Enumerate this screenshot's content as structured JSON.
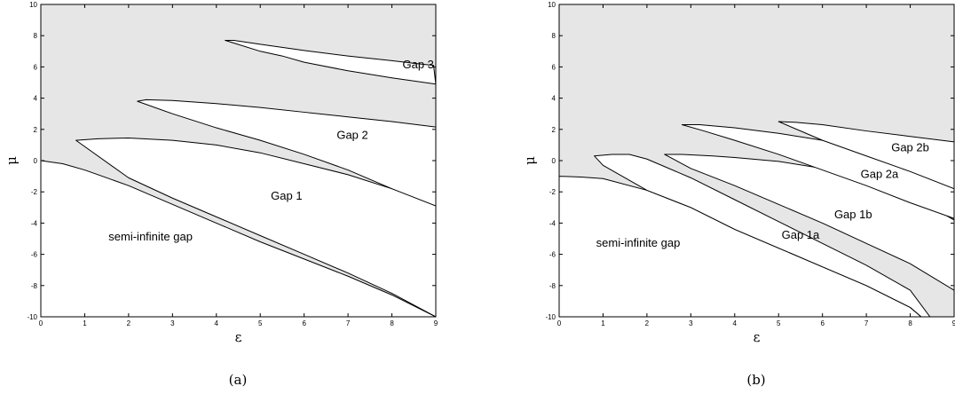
{
  "chart_data": [
    {
      "type": "area",
      "xlabel": "ε",
      "ylabel": "μ",
      "caption": "(a)",
      "xlim": [
        0,
        9
      ],
      "ylim": [
        -10,
        10
      ],
      "x_ticks": [
        0,
        1,
        2,
        3,
        4,
        5,
        6,
        7,
        8,
        9
      ],
      "y_ticks": [
        -10,
        -8,
        -6,
        -4,
        -2,
        0,
        2,
        4,
        6,
        8,
        10
      ],
      "fill_color": "#e6e6e6",
      "line_color": "#000000",
      "gaps": [
        {
          "name": "semi-infinite gap",
          "label_at": [
            2.5,
            -5.1
          ],
          "points": [
            [
              0,
              -10
            ],
            [
              0,
              0
            ],
            [
              0.5,
              -0.2
            ],
            [
              1,
              -0.6
            ],
            [
              2,
              -1.6
            ],
            [
              3,
              -2.8
            ],
            [
              4,
              -4.0
            ],
            [
              5,
              -5.2
            ],
            [
              6,
              -6.3
            ],
            [
              7,
              -7.4
            ],
            [
              8,
              -8.6
            ],
            [
              9,
              -10
            ]
          ]
        },
        {
          "name": "Gap 1",
          "label_at": [
            5.6,
            -2.5
          ],
          "points": [
            [
              0.8,
              1.3
            ],
            [
              1.3,
              1.4
            ],
            [
              2,
              1.45
            ],
            [
              3,
              1.3
            ],
            [
              4,
              1.0
            ],
            [
              5,
              0.5
            ],
            [
              6,
              -0.2
            ],
            [
              7,
              -0.9
            ],
            [
              8,
              -1.8
            ],
            [
              9,
              -2.8
            ],
            [
              9,
              -10
            ],
            [
              8,
              -8.5
            ],
            [
              7,
              -7.2
            ],
            [
              6,
              -6.0
            ],
            [
              5,
              -4.8
            ],
            [
              4,
              -3.6
            ],
            [
              3,
              -2.4
            ],
            [
              2,
              -1.1
            ],
            [
              0.8,
              1.3
            ]
          ]
        },
        {
          "name": "Gap 2",
          "label_at": [
            7.1,
            1.4
          ],
          "points": [
            [
              2.2,
              3.8
            ],
            [
              2.4,
              3.9
            ],
            [
              3,
              3.85
            ],
            [
              4,
              3.65
            ],
            [
              5,
              3.4
            ],
            [
              6,
              3.1
            ],
            [
              7,
              2.8
            ],
            [
              8,
              2.5
            ],
            [
              9,
              2.15
            ],
            [
              9,
              -2.9
            ],
            [
              8,
              -1.8
            ],
            [
              7,
              -0.6
            ],
            [
              6,
              0.4
            ],
            [
              5,
              1.3
            ],
            [
              4,
              2.1
            ],
            [
              3,
              3.0
            ],
            [
              2.2,
              3.8
            ]
          ]
        },
        {
          "name": "Gap 3",
          "label_at": [
            8.6,
            5.9
          ],
          "points": [
            [
              4.2,
              7.7
            ],
            [
              4.4,
              7.7
            ],
            [
              5,
              7.45
            ],
            [
              6,
              7.05
            ],
            [
              7,
              6.7
            ],
            [
              8,
              6.4
            ],
            [
              8.6,
              6.2
            ],
            [
              8.95,
              6.1
            ],
            [
              9,
              4.9
            ],
            [
              8,
              5.3
            ],
            [
              7,
              5.75
            ],
            [
              6,
              6.3
            ],
            [
              5.5,
              6.7
            ],
            [
              5,
              7.0
            ],
            [
              4.2,
              7.7
            ]
          ]
        }
      ]
    },
    {
      "type": "area",
      "xlabel": "ε",
      "ylabel": "μ",
      "caption": "(b)",
      "xlim": [
        0,
        9
      ],
      "ylim": [
        -10,
        10
      ],
      "x_ticks": [
        0,
        1,
        2,
        3,
        4,
        5,
        6,
        7,
        8,
        9
      ],
      "y_ticks": [
        -10,
        -8,
        -6,
        -4,
        -2,
        0,
        2,
        4,
        6,
        8,
        10
      ],
      "fill_color": "#e6e6e6",
      "line_color": "#000000",
      "gaps": [
        {
          "name": "semi-infinite gap",
          "label_at": [
            1.8,
            -5.5
          ],
          "points": [
            [
              0,
              -10
            ],
            [
              0,
              -1.0
            ],
            [
              0.5,
              -1.05
            ],
            [
              1,
              -1.15
            ],
            [
              2,
              -1.9
            ],
            [
              3,
              -3.0
            ],
            [
              4,
              -4.4
            ],
            [
              5,
              -5.6
            ],
            [
              6,
              -6.8
            ],
            [
              7,
              -8.0
            ],
            [
              8,
              -9.4
            ],
            [
              8.25,
              -10
            ]
          ]
        },
        {
          "name": "Gap 1a",
          "label_at": [
            5.5,
            -5.0
          ],
          "points": [
            [
              0.8,
              0.3
            ],
            [
              1.2,
              0.4
            ],
            [
              1.6,
              0.4
            ],
            [
              2,
              0.1
            ],
            [
              3,
              -1.1
            ],
            [
              4,
              -2.5
            ],
            [
              5,
              -3.9
            ],
            [
              6,
              -5.3
            ],
            [
              7,
              -6.7
            ],
            [
              8,
              -8.3
            ],
            [
              8.45,
              -10
            ],
            [
              8.25,
              -10
            ],
            [
              8,
              -9.4
            ],
            [
              7,
              -8.0
            ],
            [
              6,
              -6.8
            ],
            [
              5,
              -5.6
            ],
            [
              4,
              -4.4
            ],
            [
              3,
              -3.0
            ],
            [
              2,
              -1.9
            ],
            [
              1,
              -0.3
            ],
            [
              0.8,
              0.3
            ]
          ]
        },
        {
          "name": "Gap 1b",
          "label_at": [
            6.7,
            -3.7
          ],
          "points": [
            [
              2.4,
              0.4
            ],
            [
              2.8,
              0.4
            ],
            [
              3.5,
              0.3
            ],
            [
              4,
              0.2
            ],
            [
              5,
              -0.05
            ],
            [
              6,
              -0.5
            ],
            [
              7,
              -1.2
            ],
            [
              8,
              -2.2
            ],
            [
              9,
              -3.8
            ],
            [
              9,
              -8.3
            ],
            [
              8,
              -6.6
            ],
            [
              7,
              -5.3
            ],
            [
              6,
              -4.0
            ],
            [
              5,
              -2.8
            ],
            [
              4,
              -1.6
            ],
            [
              3,
              -0.5
            ],
            [
              2.4,
              0.4
            ]
          ]
        },
        {
          "name": "Gap 2a",
          "label_at": [
            7.3,
            -1.1
          ],
          "points": [
            [
              2.8,
              2.3
            ],
            [
              3.2,
              2.3
            ],
            [
              4,
              2.1
            ],
            [
              5,
              1.75
            ],
            [
              6,
              1.3
            ],
            [
              7,
              0.75
            ],
            [
              8,
              0.1
            ],
            [
              9,
              -0.6
            ],
            [
              9,
              -3.7
            ],
            [
              8,
              -2.7
            ],
            [
              7,
              -1.6
            ],
            [
              6,
              -0.6
            ],
            [
              5,
              0.4
            ],
            [
              4,
              1.3
            ],
            [
              3.3,
              1.9
            ],
            [
              2.8,
              2.3
            ]
          ]
        },
        {
          "name": "Gap 2b",
          "label_at": [
            8.0,
            0.6
          ],
          "points": [
            [
              5,
              2.5
            ],
            [
              5.4,
              2.45
            ],
            [
              6,
              2.3
            ],
            [
              7,
              1.9
            ],
            [
              8,
              1.55
            ],
            [
              9,
              1.2
            ],
            [
              9,
              -1.8
            ],
            [
              8,
              -0.7
            ],
            [
              7,
              0.3
            ],
            [
              6,
              1.3
            ],
            [
              5,
              2.5
            ]
          ]
        }
      ]
    }
  ]
}
